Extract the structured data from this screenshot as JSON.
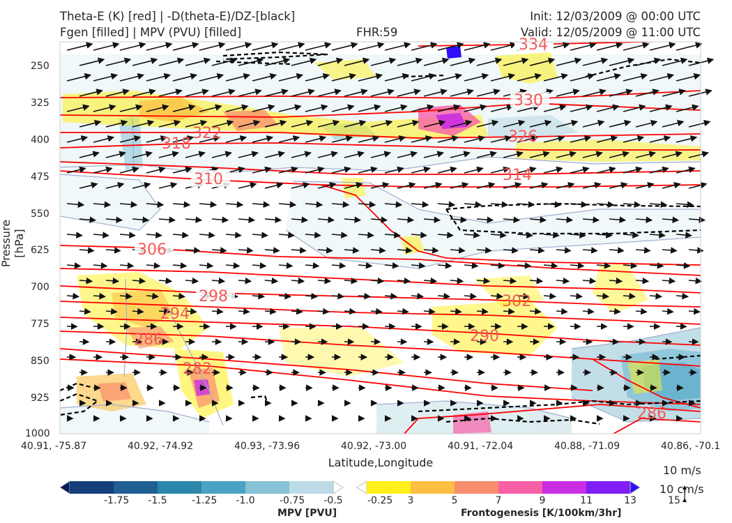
{
  "header": {
    "title_left_1": "Theta-E (K) [red] | -D(theta-E)/DZ-[black]",
    "title_left_2": "Fgen [filled] | MPV (PVU) [filled]",
    "fhr": "FHR:59",
    "init": "Init: 12/03/2009 @ 00:00 UTC",
    "valid": "Valid: 12/05/2009 @ 11:00 UTC"
  },
  "chart_data": {
    "type": "cross-section",
    "xlabel": "Latitude,Longitude",
    "ylabel": "Pressure [hPa]",
    "x_ticks": [
      "40.91, -75.87",
      "40.92, -74.92",
      "40.93, -73.96",
      "40.92, -73.00",
      "40.91, -72.04",
      "40.88, -71.09",
      "40.86, -70.1"
    ],
    "y_ticks": [
      250,
      325,
      400,
      475,
      550,
      625,
      700,
      775,
      850,
      925,
      1000
    ],
    "ylim": [
      1000,
      200
    ],
    "y_inverted": true,
    "theta_e_contours": [
      {
        "label": "334",
        "value": 334
      },
      {
        "label": "330",
        "value": 330
      },
      {
        "label": "326",
        "value": 326
      },
      {
        "label": "322",
        "value": 322
      },
      {
        "label": "318",
        "value": 318
      },
      {
        "label": "314",
        "value": 314
      },
      {
        "label": "310",
        "value": 310
      },
      {
        "label": "306",
        "value": 306
      },
      {
        "label": "302",
        "value": 302
      },
      {
        "label": "298",
        "value": 298
      },
      {
        "label": "294",
        "value": 294
      },
      {
        "label": "290",
        "value": 290
      },
      {
        "label": "286",
        "value": 286
      },
      {
        "label": "286",
        "value": 286
      },
      {
        "label": "282",
        "value": 282
      }
    ],
    "colors": {
      "theta_e": "#ff0000",
      "theta_e_label": "#f05a5a",
      "stability": "#000000",
      "mpv_contour": "#a0aed0"
    },
    "mpv_colorbar": {
      "label": "MPV [PVU]",
      "ticks": [
        "-1.75",
        "-1.5",
        "-1.25",
        "-1.0",
        "-0.75",
        "-0.5",
        "-0.25"
      ],
      "colors": [
        "#081d58",
        "#143f7a",
        "#1f5f92",
        "#2b87a9",
        "#4aa3c4",
        "#86c1d6",
        "#bcdbe6",
        "#ffffff"
      ]
    },
    "fgen_colorbar": {
      "label": "Frontogenesis [K/100km/3hr]",
      "ticks": [
        "3",
        "5",
        "7",
        "9",
        "11",
        "13",
        "15"
      ],
      "colors": [
        "#ffffff",
        "#ffef1a",
        "#fcbf42",
        "#f98e6e",
        "#f75fa7",
        "#c92ee3",
        "#7f1ff5",
        "#2e10f8"
      ]
    },
    "wind_keys": [
      "10 m/s",
      "10 cm/s"
    ]
  }
}
